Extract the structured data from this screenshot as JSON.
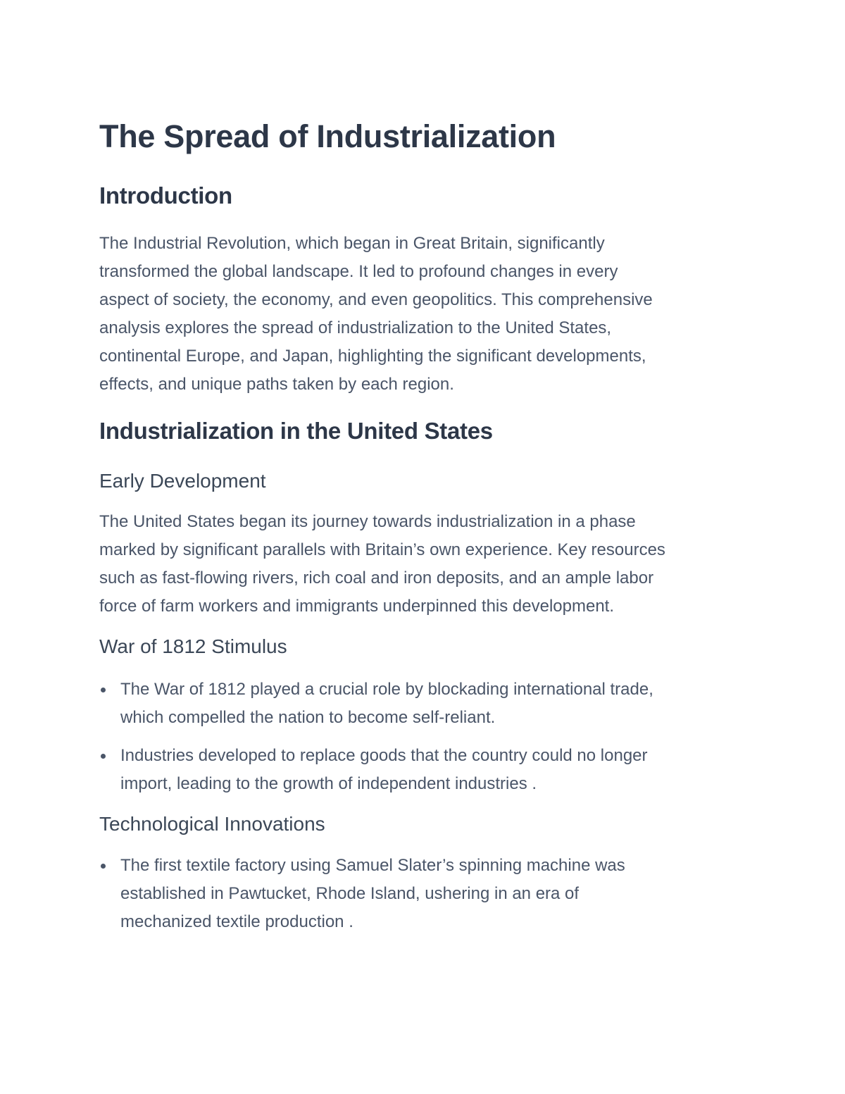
{
  "title": "The Spread of Industrialization",
  "intro": {
    "heading": "Introduction",
    "lines": [
      "The Industrial Revolution, which began in Great Britain, significantly",
      "transformed the global landscape. It led to profound changes in every",
      "aspect of society, the economy, and even geopolitics. This comprehensive",
      "analysis explores the spread of industrialization to the United States,",
      "continental Europe, and Japan, highlighting the significant developments,",
      "effects, and unique paths taken by each region."
    ]
  },
  "us": {
    "heading": "Industrialization in the United States",
    "early": {
      "heading": "Early Development",
      "lines": [
        "The United States began its journey towards industrialization in a phase",
        "marked by significant parallels with Britain’s own experience. Key resources",
        "such as fast-flowing rivers, rich coal and iron deposits, and an ample labor",
        "force of farm workers and immigrants underpinned this development."
      ]
    },
    "war": {
      "heading": "War of 1812 Stimulus",
      "bullets": [
        [
          "The War of 1812 played a crucial role by blockading international trade,",
          "which compelled the nation to become self-reliant."
        ],
        [
          "Industries developed to replace goods that the country could no longer",
          "import, leading to the growth of independent industries ."
        ]
      ]
    },
    "tech": {
      "heading": "Technological Innovations",
      "bullets": [
        [
          "The first textile factory using Samuel Slater’s spinning machine was",
          "established in Pawtucket, Rhode Island, ushering in an era of",
          "mechanized textile production ."
        ]
      ]
    }
  }
}
